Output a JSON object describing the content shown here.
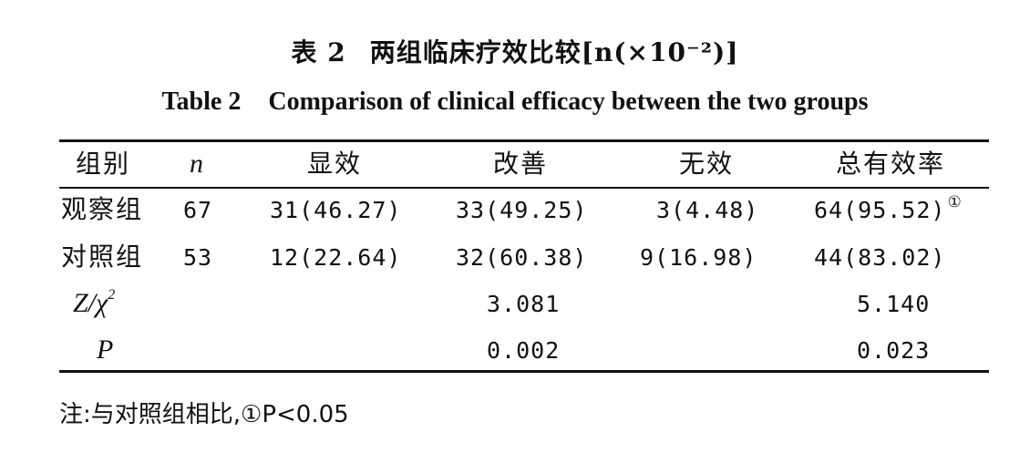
{
  "title": {
    "cn_prefix": "表 2",
    "cn_main": "两组临床疗效比较[n(×10⁻²)]",
    "en_prefix": "Table 2",
    "en_main": "Comparison of clinical efficacy between the two groups"
  },
  "table": {
    "headers": [
      "组别",
      "n",
      "显效",
      "改善",
      "无效",
      "总有效率"
    ],
    "rows": [
      {
        "group": "观察组",
        "n": "67",
        "marked": "31(46.27)",
        "improved": "33(49.25)",
        "ineffective": "3(4.48)",
        "total": "64(95.52)",
        "total_mark": "①"
      },
      {
        "group": "对照组",
        "n": "53",
        "marked": "12(22.64)",
        "improved": "32(60.38)",
        "ineffective": "9(16.98)",
        "total": "44(83.02)",
        "total_mark": ""
      }
    ],
    "stat_rows": [
      {
        "label_main": "Z/χ",
        "label_sup": "2",
        "improved": "3.081",
        "total": "5.140"
      },
      {
        "label_main": "P",
        "label_sup": "",
        "improved": "0.002",
        "total": "0.023"
      }
    ]
  },
  "note": "注:与对照组相比,①P<0.05"
}
